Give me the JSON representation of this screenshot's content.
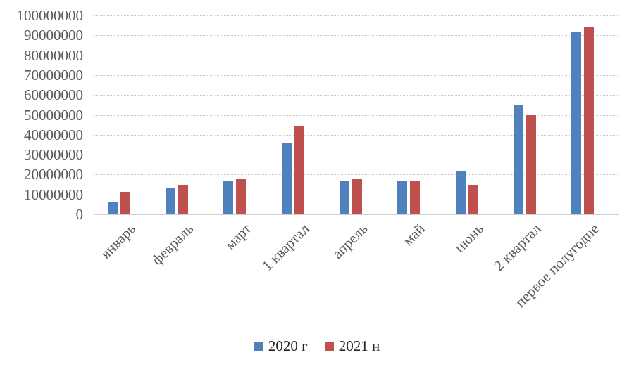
{
  "chart_data": {
    "type": "bar",
    "title": "",
    "xlabel": "",
    "ylabel": "",
    "categories": [
      "январь",
      "февраль",
      "март",
      "1 квартал",
      "апрель",
      "май",
      "июнь",
      "2 квартал",
      "первое полугодие"
    ],
    "series": [
      {
        "name": "2020 г",
        "color": "#4F81BD",
        "values": [
          6000000,
          13000000,
          16500000,
          36000000,
          17000000,
          17000000,
          21500000,
          55000000,
          91500000
        ]
      },
      {
        "name": "2021 н",
        "color": "#C0504D",
        "values": [
          11500000,
          15000000,
          17800000,
          44500000,
          17600000,
          16500000,
          15000000,
          50000000,
          94500000
        ]
      }
    ],
    "ylim": [
      0,
      100000000
    ],
    "ytick_step": 10000000,
    "yticks": [
      "100000000",
      "90000000",
      "80000000",
      "70000000",
      "60000000",
      "50000000",
      "40000000",
      "30000000",
      "20000000",
      "10000000",
      "0"
    ],
    "grid": "horizontal-dotted",
    "legend_position": "bottom"
  },
  "colors": {
    "background": "#FFFFFF",
    "grid": "#C9C9C9",
    "axis_text": "#595959",
    "legend_text": "#262626",
    "series_2020": "#4F81BD",
    "series_2021": "#C0504D"
  },
  "legend": {
    "items": [
      {
        "label": "2020 г",
        "color": "#4F81BD"
      },
      {
        "label": "2021 н",
        "color": "#C0504D"
      }
    ]
  }
}
